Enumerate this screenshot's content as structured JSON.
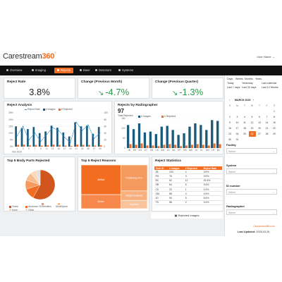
{
  "header": {
    "logo_text": "Carestream",
    "logo_num": "360",
    "logo_sup": "°",
    "user_name": "User Name",
    "chevron": "⌄"
  },
  "nav": [
    {
      "label": "Overview",
      "icon": "grid-icon",
      "active": false
    },
    {
      "label": "Imaging",
      "icon": "image-icon",
      "active": false
    },
    {
      "label": "Rejects",
      "icon": "reject-icon",
      "active": true
    },
    {
      "label": "Base",
      "icon": "base-icon",
      "active": false
    },
    {
      "label": "Detectors",
      "icon": "detector-icon",
      "active": false
    },
    {
      "label": "Systems",
      "icon": "system-icon",
      "active": false
    }
  ],
  "kpis": {
    "reject_rate": {
      "title": "Reject Rate",
      "value": "3.8%"
    },
    "change_month": {
      "title": "Change (Previous Month)",
      "arrow": "↘",
      "value": "-4.7%"
    },
    "change_quarter": {
      "title": "Change (Previous Quarter)",
      "arrow": "↘",
      "value": "-1.3%"
    }
  },
  "reject_analysis": {
    "title": "Reject Analysis",
    "legend": [
      "Reject Rate",
      "# Images",
      "# Rejected"
    ],
    "colors": {
      "images": "#1b5a7a",
      "rejected": "#f26d21",
      "rate": "#2f8fd6"
    },
    "chart_data": {
      "type": "bar",
      "categories": [
        "1",
        "3",
        "5",
        "7",
        "9",
        "11",
        "13",
        "15",
        "17",
        "19",
        "21",
        "23",
        "25",
        "27",
        "29"
      ],
      "x_caption": "Mar 2025",
      "series": [
        {
          "name": "# Images",
          "values": [
            60,
            55,
            52,
            58,
            40,
            45,
            62,
            56,
            42,
            30,
            72,
            60,
            62,
            38,
            58
          ]
        },
        {
          "name": "# Rejected",
          "values": [
            5,
            6,
            4,
            5,
            3,
            4,
            6,
            5,
            3,
            2,
            6,
            5,
            5,
            3,
            4
          ]
        },
        {
          "name": "Reject Rate",
          "values": [
            8,
            15,
            5,
            10,
            4,
            9,
            14,
            12,
            7,
            3,
            18,
            12,
            16,
            6,
            10
          ]
        }
      ],
      "y_left_ticks": [
        "0%",
        "5%",
        "10%",
        "15%",
        "20%",
        "25%"
      ],
      "y_right_ticks": [
        "0",
        "20",
        "40",
        "60",
        "80",
        "100"
      ],
      "ylim_left": [
        0,
        25
      ],
      "ylim_right": [
        0,
        100
      ]
    }
  },
  "rejects_by_radiographer": {
    "title": "Rejects by Radiographer",
    "total_value": "97",
    "total_label": "Total Rejected",
    "legend": [
      "# Images",
      "# Rejected"
    ],
    "chart_data": {
      "type": "bar",
      "categories": [
        "JB",
        "RS",
        "EO",
        "DT",
        "SB",
        "CK",
        "GM",
        "JD",
        "WL",
        "EP",
        "RB",
        "AW",
        "JU",
        "KL",
        "AM",
        "LR",
        "ML"
      ],
      "series": [
        {
          "name": "# Images",
          "values": [
            140,
            115,
            150,
            95,
            100,
            85,
            130,
            135,
            110,
            80,
            90,
            130,
            150,
            140,
            110,
            170,
            165
          ]
        },
        {
          "name": "# Rejected",
          "values": [
            6,
            5,
            7,
            4,
            4,
            3,
            5,
            6,
            5,
            3,
            4,
            5,
            6,
            5,
            4,
            7,
            6
          ]
        }
      ],
      "y_ticks": [
        "0",
        "60",
        "120",
        "180"
      ],
      "ylim": [
        0,
        180
      ]
    }
  },
  "body_parts": {
    "title": "Top 5 Body Parts Rejected",
    "chart_data": {
      "type": "pie",
      "labels": [
        "Chest",
        "Abdomen",
        "Extremities",
        "Skull/Spine",
        "Knee",
        "Other"
      ],
      "values": [
        58,
        12,
        10,
        9,
        6,
        5
      ],
      "colors": [
        "#d1561d",
        "#f26d21",
        "#f59a5a",
        "#f8bd8e",
        "#fbd9bd",
        "#e8e0d8"
      ]
    },
    "legend": [
      "Chest",
      "Abdomen",
      "Extremities",
      "Skull/Spine",
      "Knee",
      "Other"
    ]
  },
  "reject_reasons": {
    "title": "Top 5 Reject Reasons",
    "chart_data": {
      "type": "table",
      "labels": [
        "Artifact",
        "Motion",
        "Positioning Error",
        "Clipped Anatomy",
        "Exposure"
      ],
      "values": [
        38,
        18,
        22,
        8,
        7
      ],
      "colors": [
        "#f26d21",
        "#f5884a",
        "#f49a5e",
        "#f7b07e",
        "#f9c39b"
      ]
    }
  },
  "reject_statistics": {
    "title": "Reject Statistics",
    "columns": [
      "Tech ID",
      "# Images",
      "# Rejected",
      "Reject Rate"
    ],
    "rows": [
      [
        "JB",
        "103",
        "4",
        "3.9%"
      ],
      [
        "RS",
        "76",
        "3",
        "3.9%"
      ],
      [
        "BC",
        "62",
        "12",
        "19.4%"
      ],
      [
        "SB",
        "64",
        "6",
        "9.4%"
      ],
      [
        "CK",
        "23",
        "1",
        "4.3%"
      ],
      [
        "GM",
        "88",
        "4",
        "4.5%"
      ],
      [
        "JD",
        "90",
        "5",
        "5.6%"
      ],
      [
        "TS",
        "58",
        "2",
        "3.4%"
      ]
    ],
    "footer_button": "Rejected Images"
  },
  "sidebar": {
    "quick_ranges": [
      [
        "Days",
        "Weeks",
        "Months",
        "Years"
      ],
      [
        "Today",
        "Yesterday",
        "Last calendar"
      ],
      [
        "Last 7 days",
        "Last 30 days",
        "Last 12 Weeks"
      ]
    ],
    "calendar": {
      "month": "MARCH 2025",
      "prev": "‹",
      "next": "›",
      "dow": [
        "S",
        "M",
        "T",
        "W",
        "T",
        "F",
        "S"
      ],
      "weeks": [
        [
          "",
          "",
          "",
          "",
          "",
          "",
          "1"
        ],
        [
          "2",
          "3",
          "4",
          "5",
          "6",
          "7",
          "8"
        ],
        [
          "9",
          "10",
          "11",
          "12",
          "13",
          "14",
          "15"
        ],
        [
          "16",
          "17",
          "18",
          "19",
          "20",
          "21",
          "22"
        ],
        [
          "23",
          "24",
          "25",
          "26",
          "27",
          "28",
          "29"
        ],
        [
          "30",
          "31",
          "",
          "",
          "",
          "",
          ""
        ]
      ],
      "selected": "26"
    },
    "filters": [
      {
        "label": "Facility",
        "placeholder": "Select"
      },
      {
        "label": "System",
        "placeholder": "Select"
      },
      {
        "label": "ID number",
        "placeholder": "Select"
      },
      {
        "label": "Radiographer",
        "placeholder": "Select"
      }
    ],
    "link": "Carestream360.com",
    "updated_label": "Last Updated:",
    "updated_value": "2025.03.26"
  }
}
